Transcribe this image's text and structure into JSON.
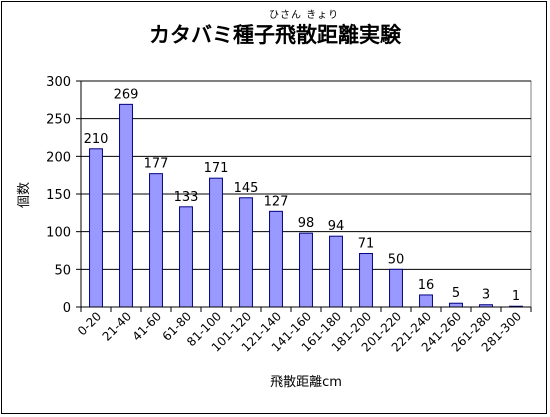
{
  "ruby_text": "ひさん きょり",
  "chart_data": {
    "type": "bar",
    "title": "カタバミ種子飛散距離実験",
    "xlabel": "飛散距離cm",
    "ylabel": "個数",
    "categories": [
      "0-20",
      "21-40",
      "41-60",
      "61-80",
      "81-100",
      "101-120",
      "121-140",
      "141-160",
      "161-180",
      "181-200",
      "201-220",
      "221-240",
      "241-260",
      "261-280",
      "281-300"
    ],
    "values": [
      210,
      269,
      177,
      133,
      171,
      145,
      127,
      98,
      94,
      71,
      50,
      16,
      5,
      3,
      1
    ],
    "ylim": [
      0,
      300
    ],
    "yticks": [
      0,
      50,
      100,
      150,
      200,
      250,
      300
    ],
    "grid": true,
    "legend": "none",
    "bar_color": "#9999ff",
    "bar_edge": "#000080"
  }
}
